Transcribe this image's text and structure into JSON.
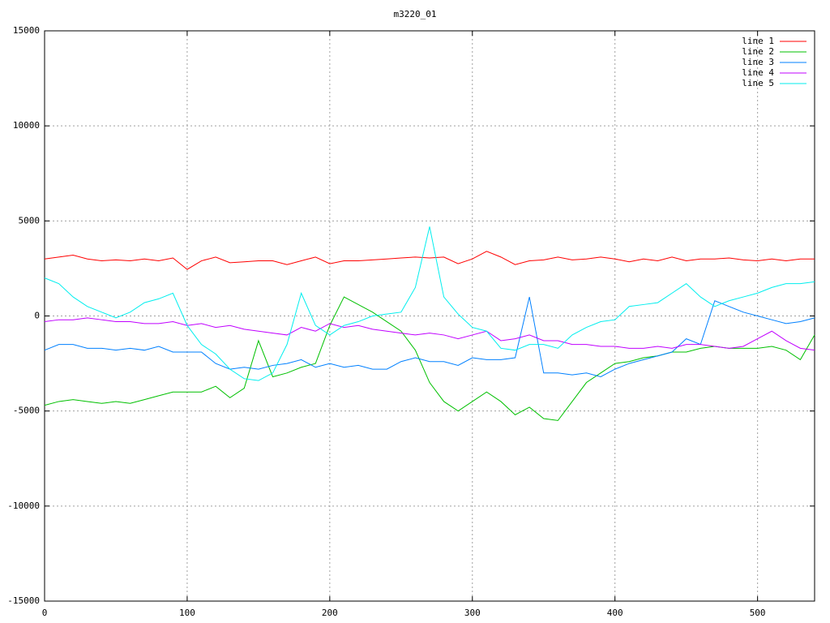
{
  "chart_data": {
    "type": "line",
    "title": "m3220_01",
    "x": [
      0,
      10,
      20,
      30,
      40,
      50,
      60,
      70,
      80,
      90,
      100,
      110,
      120,
      130,
      140,
      150,
      160,
      170,
      180,
      190,
      200,
      210,
      220,
      230,
      240,
      250,
      260,
      270,
      280,
      290,
      300,
      310,
      320,
      330,
      340,
      350,
      360,
      370,
      380,
      390,
      400,
      410,
      420,
      430,
      440,
      450,
      460,
      470,
      480,
      490,
      500,
      510,
      520,
      530,
      540
    ],
    "series": [
      {
        "name": "line 1",
        "color": "#ff0000",
        "values": [
          3000,
          3100,
          3200,
          3000,
          2900,
          2950,
          2900,
          3000,
          2900,
          3050,
          2450,
          2900,
          3100,
          2800,
          2850,
          2900,
          2900,
          2700,
          2900,
          3100,
          2750,
          2900,
          2900,
          2950,
          3000,
          3050,
          3100,
          3050,
          3100,
          2750,
          3000,
          3400,
          3100,
          2700,
          2900,
          2950,
          3100,
          2950,
          3000,
          3100,
          3000,
          2850,
          3000,
          2900,
          3100,
          2900,
          3000,
          3000,
          3050,
          2950,
          2900,
          3000,
          2900,
          3000,
          3000
        ]
      },
      {
        "name": "line 2",
        "color": "#00c000",
        "values": [
          -4700,
          -4500,
          -4400,
          -4500,
          -4600,
          -4500,
          -4600,
          -4400,
          -4200,
          -4000,
          -4000,
          -4000,
          -3700,
          -4300,
          -3800,
          -1300,
          -3200,
          -3000,
          -2700,
          -2500,
          -500,
          1000,
          600,
          200,
          -300,
          -800,
          -1800,
          -3500,
          -4500,
          -5000,
          -4500,
          -4000,
          -4500,
          -5200,
          -4800,
          -5400,
          -5500,
          -4500,
          -3500,
          -3000,
          -2500,
          -2400,
          -2200,
          -2100,
          -1900,
          -1900,
          -1700,
          -1600,
          -1700,
          -1700,
          -1700,
          -1600,
          -1800,
          -2300,
          -1000
        ]
      },
      {
        "name": "line 3",
        "color": "#0080ff",
        "values": [
          -1800,
          -1500,
          -1500,
          -1700,
          -1700,
          -1800,
          -1700,
          -1800,
          -1600,
          -1900,
          -1900,
          -1900,
          -2500,
          -2800,
          -2700,
          -2800,
          -2600,
          -2500,
          -2300,
          -2700,
          -2500,
          -2700,
          -2600,
          -2800,
          -2800,
          -2400,
          -2200,
          -2400,
          -2400,
          -2600,
          -2200,
          -2300,
          -2300,
          -2200,
          1000,
          -3000,
          -3000,
          -3100,
          -3000,
          -3200,
          -2800,
          -2500,
          -2300,
          -2100,
          -1900,
          -1200,
          -1500,
          800,
          500,
          200,
          0,
          -200,
          -400,
          -300,
          -100
        ]
      },
      {
        "name": "line 4",
        "color": "#c000ff",
        "values": [
          -300,
          -200,
          -200,
          -100,
          -200,
          -300,
          -300,
          -400,
          -400,
          -300,
          -500,
          -400,
          -600,
          -500,
          -700,
          -800,
          -900,
          -1000,
          -600,
          -800,
          -400,
          -600,
          -500,
          -700,
          -800,
          -900,
          -1000,
          -900,
          -1000,
          -1200,
          -1000,
          -800,
          -1300,
          -1200,
          -1000,
          -1300,
          -1300,
          -1500,
          -1500,
          -1600,
          -1600,
          -1700,
          -1700,
          -1600,
          -1700,
          -1500,
          -1500,
          -1600,
          -1700,
          -1600,
          -1200,
          -800,
          -1300,
          -1700,
          -1800
        ]
      },
      {
        "name": "line 5",
        "color": "#00eeee",
        "values": [
          2000,
          1700,
          1000,
          500,
          200,
          -100,
          200,
          700,
          900,
          1200,
          -500,
          -1500,
          -2000,
          -2800,
          -3300,
          -3400,
          -3000,
          -1500,
          1200,
          -500,
          -1000,
          -500,
          -300,
          0,
          100,
          200,
          1500,
          4700,
          1000,
          100,
          -600,
          -800,
          -1700,
          -1800,
          -1500,
          -1500,
          -1700,
          -1000,
          -600,
          -300,
          -200,
          500,
          600,
          700,
          1200,
          1700,
          1000,
          500,
          800,
          1000,
          1200,
          1500,
          1700,
          1700,
          1800
        ]
      }
    ],
    "xlim": [
      0,
      540
    ],
    "ylim": [
      -15000,
      15000
    ],
    "xticks": [
      0,
      100,
      200,
      300,
      400,
      500
    ],
    "yticks": [
      -15000,
      -10000,
      -5000,
      0,
      5000,
      10000,
      15000
    ],
    "grid": true,
    "legend": "top-right"
  }
}
